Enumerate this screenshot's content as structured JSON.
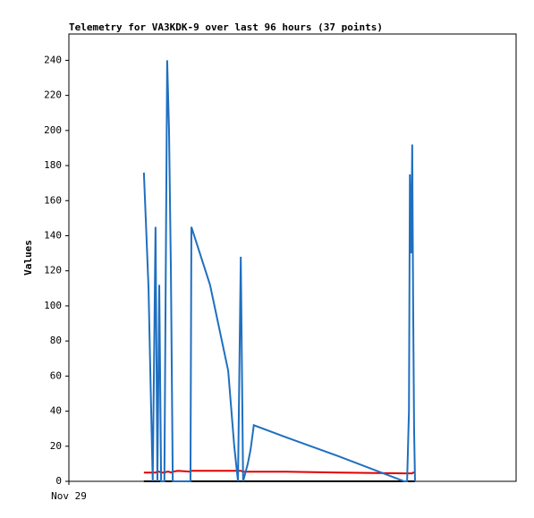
{
  "chart_data": {
    "type": "line",
    "title": "Telemetry for VA3KDK-9 over last 96 hours (37 points)",
    "y_label": "Values",
    "x": [
      16.1,
      16.5,
      17.1,
      17.5,
      18.0,
      18.6,
      19.0,
      19.4,
      19.8,
      20.5,
      21.1,
      21.5,
      21.9,
      22.3,
      23.4,
      26.1,
      26.3,
      30.3,
      34.2,
      35.5,
      36.3,
      36.9,
      37.4,
      38.4,
      39.0,
      39.7,
      46.7,
      58.2,
      72.0,
      72.6,
      73.0,
      73.2,
      73.5,
      73.7,
      73.9,
      74.1,
      74.3
    ],
    "series": [
      {
        "name": "blue",
        "color": "#1f6fc0",
        "values": [
          176,
          150,
          110,
          60,
          0,
          145,
          0,
          112,
          0,
          0,
          240,
          200,
          120,
          0,
          0,
          0,
          145,
          112,
          63,
          20,
          0,
          128,
          0,
          10,
          18,
          32,
          25,
          14,
          0,
          0,
          40,
          175,
          130,
          192,
          100,
          30,
          0
        ]
      },
      {
        "name": "red",
        "color": "#e00000",
        "values": [
          5,
          5,
          5,
          5,
          5,
          5,
          5.5,
          5.5,
          5,
          5,
          5.5,
          5.5,
          5,
          5.5,
          6,
          5.5,
          6,
          6,
          6,
          6,
          6,
          6,
          5.5,
          5.5,
          5.5,
          5.5,
          5.5,
          5,
          4.5,
          4.5,
          4.5,
          4.5,
          4.5,
          4.5,
          5,
          5,
          5
        ]
      },
      {
        "name": "black",
        "color": "#000000",
        "values": [
          0,
          0,
          0,
          0,
          0,
          0,
          0,
          0,
          0,
          0,
          0,
          0,
          0,
          0,
          0,
          0,
          0,
          0,
          0,
          0,
          0,
          0,
          0,
          0,
          0,
          0,
          0,
          0,
          0,
          0,
          0,
          0,
          0,
          0,
          0,
          0,
          0
        ]
      }
    ],
    "xlim": [
      0,
      96
    ],
    "xticks": [
      {
        "value": 0,
        "label": "Nov 29"
      }
    ],
    "ylim": [
      0,
      255
    ],
    "yticks": [
      0,
      20,
      40,
      60,
      80,
      100,
      120,
      140,
      160,
      180,
      200,
      220,
      240
    ]
  }
}
